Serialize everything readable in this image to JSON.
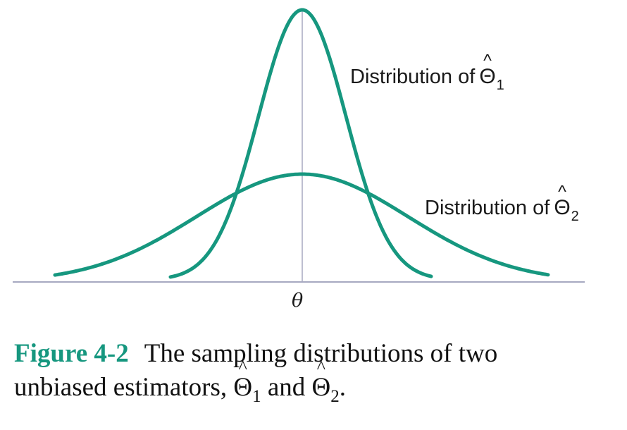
{
  "colors": {
    "curve": "#16977f",
    "axis": "#a7a9c1",
    "caption_label": "#16977f",
    "text": "#111111"
  },
  "axis": {
    "center_label": "θ"
  },
  "curves": [
    {
      "label_prefix": "Distribution of",
      "symbol": "Θ",
      "hat": "^",
      "subscript": "1",
      "spread": "narrow"
    },
    {
      "label_prefix": "Distribution of",
      "symbol": "Θ",
      "hat": "^",
      "subscript": "2",
      "spread": "wide"
    }
  ],
  "caption": {
    "label": "Figure 4-2",
    "line1": "The sampling distributions of two",
    "line2_prefix": "unbiased estimators,",
    "symbol": "Θ",
    "hat": "^",
    "sub1": "1",
    "joiner": "and",
    "sub2": "2",
    "end": "."
  }
}
